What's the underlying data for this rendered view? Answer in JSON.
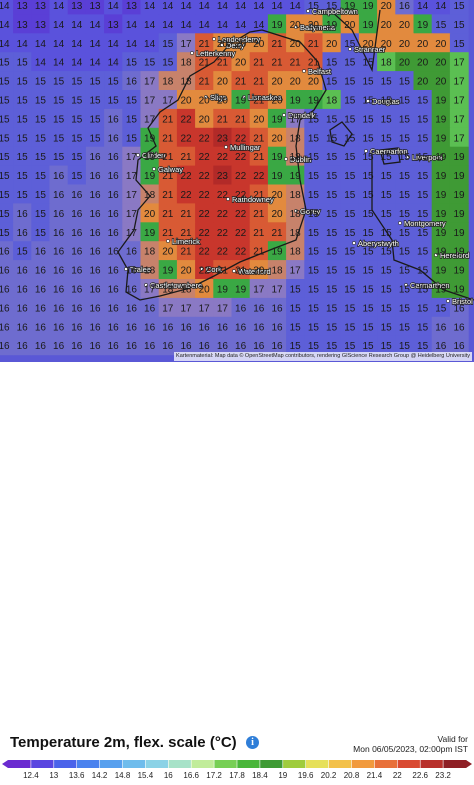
{
  "map": {
    "title": "Temperature 2m, flex. scale (°C)",
    "attribution": "Kartenmaterial: Map data © OpenStreetMap contributors, rendering GIScience Research Group @ Heidelberg University",
    "valid_for_label": "Valid for",
    "valid_time": "Mon 06/05/2023, 02:00pm IST",
    "info_symbol": "i",
    "cities": [
      "Campbeltown",
      "Ballymena",
      "Londonderry",
      "Derry",
      "Letterkenny",
      "Stranraer",
      "Belfast",
      "Sligo",
      "Lisnaskea",
      "Douglas",
      "Dundalk",
      "Caernarfon",
      "Clifden",
      "Mullingar",
      "Dublin",
      "Liverpool",
      "Galway",
      "Rathdowney",
      "Gorey",
      "Limerick",
      "Tralee",
      "Cork",
      "Waterford",
      "Castletownbere",
      "Montgomery",
      "Hereford",
      "Aberystwyth",
      "Bristol",
      "Carmarthen"
    ],
    "grid_rows": [
      "14 13 13 14 13 13 14 13 14 14 14 14 14 14 14 14 14 15 15 19 19 20 16 14 14 15",
      "14 13 13 14 14 14 13 14 14 14 14 14 14 14 14 19 20 20 19 20 19 20 20 19 15 15",
      "14 14 14 14 14 14 14 14 14 15 17 21 20 20 20 21 20 21 20 15 20 20 20 20 20 15",
      "15 15 14 14 14 14 14 15 15 15 18 21 21 20 21 21 21 21 15 15 15 18 20 20 20 17",
      "15 15 15 15 15 15 15 16 17 18 18 21 20 21 21 20 20 20 15 15 15 15 15 20 20 17",
      "15 15 15 15 15 15 15 15 17 17 20 20 20 19 21 20 19 19 18 15 15 15 15 15 19 17",
      "15 15 15 15 15 15 16 15 17 21 22 20 21 21 20 19 17 15 15 15 15 15 15 15 19 17",
      "15 15 15 15 15 15 16 15 19 21 22 22 23 22 21 20 18 15 15 15 15 15 15 15 19 17",
      "15 15 15 15 15 16 16 17 19 21 21 22 22 22 21 19 18 15 15 15 15 15 15 15 19 19",
      "15 15 15 16 15 16 16 17 19 21 22 22 23 22 22 19 19 15 15 15 15 15 15 15 19 19",
      "15 15 15 16 16 16 16 17 18 21 22 22 22 22 21 20 18 15 15 15 15 15 15 15 19 19",
      "15 16 15 16 16 16 16 17 20 21 21 22 22 22 21 20 18 15 15 15 15 15 15 15 19 19",
      "15 16 15 16 16 16 16 17 19 21 21 22 22 22 21 21 18 15 15 15 15 15 15 15 19 19",
      "16 15 16 16 16 16 16 16 18 20 21 22 22 22 21 19 18 15 15 15 15 15 15 15 19 19",
      "16 16 16 16 16 16 16 16 18 19 20 22 21 21 20 18 17 15 15 15 15 15 15 15 19 19",
      "16 16 16 16 16 16 16 16 17 18 18 20 19 19 17 17 15 15 15 15 15 15 15 15 19 19",
      "16 16 16 16 16 16 16 16 16 17 17 17 17 16 16 16 15 15 15 15 15 15 15 15 15 16",
      "16 16 16 16 16 16 16 16 16 16 16 16 16 16 16 16 15 15 15 15 15 15 15 15 16 16",
      "16 16 16 16 16 16 16 16 16 16 16 16 16 16 16 16 15 15 15 15 15 15 15 15 16 16"
    ]
  },
  "legend": {
    "ticks": [
      "12.4",
      "13",
      "13.6",
      "14.2",
      "14.8",
      "15.4",
      "16",
      "16.6",
      "17.2",
      "17.8",
      "18.4",
      "19",
      "19.6",
      "20.2",
      "20.8",
      "21.4",
      "22",
      "22.6",
      "23.2"
    ],
    "colors": [
      "#6b2bd0",
      "#5a45e0",
      "#4b63ea",
      "#4a82ee",
      "#58a0ee",
      "#6fbcec",
      "#8bd2e6",
      "#a7e2c8",
      "#c1ec9a",
      "#77cf55",
      "#49b63a",
      "#3f9a35",
      "#9fcc3d",
      "#e6e05a",
      "#f3c14a",
      "#f19a3e",
      "#e8703a",
      "#d94a32",
      "#b8302b",
      "#8e1f25"
    ]
  },
  "colors": {
    "land_hot": "#c8362c",
    "land_warm": "#e7823c",
    "sea_cool": "#5a58d6",
    "britain_green": "#3aa844",
    "coastline": "#1a1a1a"
  }
}
